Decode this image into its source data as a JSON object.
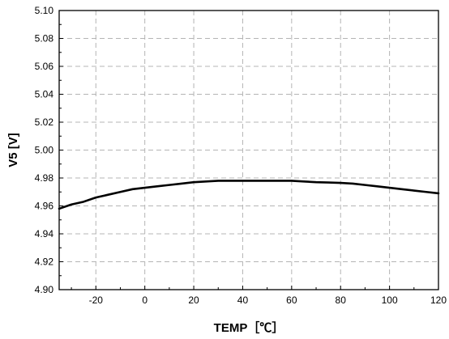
{
  "chart_data": {
    "type": "line",
    "title": "",
    "xlabel": "TEMP［℃］",
    "ylabel": "V5 [V]",
    "xlim": [
      -35,
      120
    ],
    "ylim": [
      4.9,
      5.1
    ],
    "x_ticks": [
      -20,
      0,
      20,
      40,
      60,
      80,
      100,
      120
    ],
    "x_tick_labels": [
      "-20",
      "0",
      "20",
      "40",
      "60",
      "80",
      "100",
      "120"
    ],
    "y_ticks": [
      4.9,
      4.92,
      4.94,
      4.96,
      4.98,
      5.0,
      5.02,
      5.04,
      5.06,
      5.08,
      5.1
    ],
    "y_tick_labels": [
      "4.90",
      "4.92",
      "4.94",
      "4.96",
      "4.98",
      "5.00",
      "5.02",
      "5.04",
      "5.06",
      "5.08",
      "5.10"
    ],
    "grid": true,
    "legend": "none",
    "series": [
      {
        "color": "#000000",
        "x": [
          -35,
          -30,
          -25,
          -20,
          -15,
          -10,
          -5,
          0,
          5,
          10,
          15,
          20,
          25,
          30,
          35,
          40,
          45,
          50,
          55,
          60,
          65,
          70,
          75,
          80,
          85,
          90,
          95,
          100,
          105,
          110,
          115,
          120
        ],
        "y": [
          4.958,
          4.961,
          4.963,
          4.966,
          4.968,
          4.97,
          4.972,
          4.973,
          4.974,
          4.975,
          4.976,
          4.977,
          4.9775,
          4.978,
          4.978,
          4.978,
          4.978,
          4.978,
          4.978,
          4.978,
          4.9775,
          4.977,
          4.9768,
          4.9765,
          4.976,
          4.975,
          4.974,
          4.973,
          4.972,
          4.971,
          4.97,
          4.969
        ]
      }
    ]
  }
}
